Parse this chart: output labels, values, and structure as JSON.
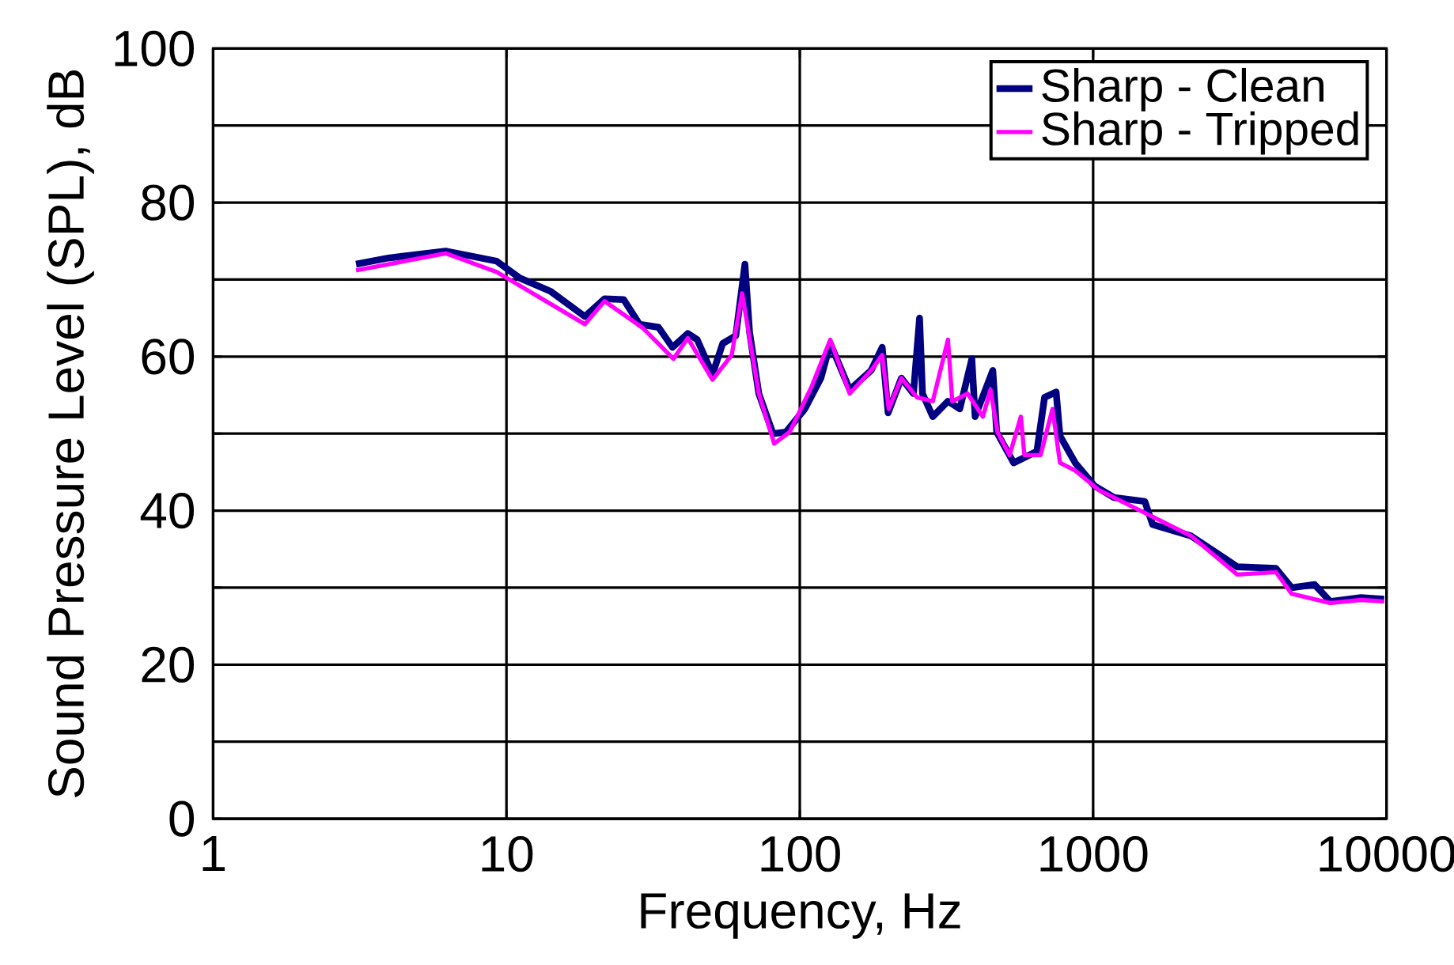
{
  "chart_data": {
    "type": "line",
    "xlabel": "Frequency, Hz",
    "ylabel": "Sound Pressure Level (SPL), dB",
    "log": "x",
    "grid": true,
    "legend": "top right",
    "marker": "none",
    "line_style": "solid",
    "xlim": [
      1,
      10000
    ],
    "xticks": [
      1,
      10,
      100,
      1000,
      10000
    ],
    "ylim": [
      0,
      100
    ],
    "yticks": [
      0,
      {
        "value": 10,
        "label": null
      },
      20,
      {
        "value": 30,
        "label": null
      },
      40,
      {
        "value": 50,
        "label": null
      },
      60,
      {
        "value": 70,
        "label": null
      },
      80,
      {
        "value": 90,
        "label": null
      },
      100
    ],
    "series": [
      {
        "name": "Sharp - Clean",
        "color": "#000080",
        "x": [
          3.07,
          3.96,
          6.2,
          9.25,
          11.1,
          14.1,
          18.5,
          21.6,
          25.1,
          28.4,
          33,
          36.8,
          41.5,
          44.7,
          50.4,
          54.6,
          60.5,
          65,
          67.4,
          72.5,
          81,
          89.7,
          104,
          118,
          127,
          148,
          175,
          191,
          200,
          222,
          244,
          256,
          262,
          284,
          320,
          351,
          386,
          396,
          455,
          469,
          536,
          643,
          683,
          748,
          771,
          869,
          1012,
          1178,
          1500,
          1595,
          2160,
          2835,
          3100,
          4200,
          4750,
          5690,
          6430,
          8190,
          9820
        ],
        "values": [
          72,
          72.8,
          73.7,
          72.4,
          70.2,
          68.5,
          65.2,
          67.5,
          67.4,
          64.2,
          63.8,
          61.2,
          63,
          62.2,
          57.7,
          61.7,
          62.7,
          72,
          63.2,
          55.2,
          50,
          50.2,
          53.2,
          57.2,
          61.7,
          55.7,
          58.2,
          61.2,
          52.7,
          57.2,
          55.2,
          65,
          55.2,
          52.2,
          54.2,
          53.2,
          59.7,
          52.2,
          58.2,
          50.2,
          46.2,
          47.7,
          54.7,
          55.4,
          49.7,
          46.2,
          43.2,
          41.7,
          41.2,
          38.2,
          36.7,
          33.7,
          32.7,
          32.5,
          30,
          30.4,
          28.2,
          28.7,
          28.5
        ]
      },
      {
        "name": "Sharp - Tripped",
        "color": "#ff00ff",
        "x": [
          3.07,
          6.2,
          9.25,
          18.5,
          21.6,
          29.2,
          37.1,
          41.5,
          50.4,
          58.6,
          63.6,
          66.2,
          72.5,
          81.8,
          92.4,
          110,
          127,
          148,
          175,
          191,
          201,
          222,
          251,
          284,
          320,
          331,
          373,
          421,
          447,
          472,
          519,
          567,
          583,
          662,
          727,
          771,
          869,
          1043,
          1500,
          2160,
          3100,
          4200,
          4750,
          6430,
          8190,
          9820
        ],
        "values": [
          71.2,
          73.4,
          71,
          64.2,
          67.2,
          63.7,
          59.7,
          62.4,
          57,
          60.2,
          68.2,
          64.2,
          55.2,
          48.7,
          50.2,
          56.2,
          62.2,
          55.2,
          58.2,
          60.2,
          53.2,
          57.2,
          54.7,
          54.2,
          62.2,
          54.2,
          55.2,
          52.2,
          55.7,
          50.2,
          47.2,
          52.2,
          47.2,
          47.2,
          53.2,
          46.2,
          45.2,
          42.7,
          39.7,
          36.7,
          31.7,
          32,
          29.2,
          28,
          28.4,
          28.2
        ]
      }
    ]
  }
}
